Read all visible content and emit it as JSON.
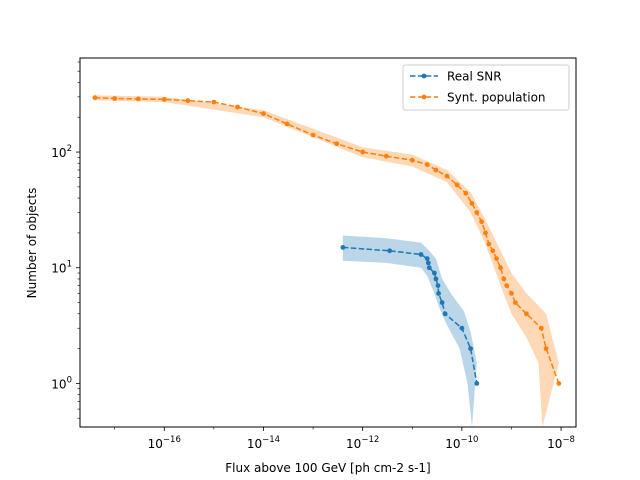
{
  "chart_data": {
    "type": "line",
    "title": "",
    "xlabel": "Flux above 100 GeV [ph cm-2 s-1]",
    "ylabel": "Number of objects",
    "xscale": "log",
    "yscale": "log",
    "xlim": [
      2e-18,
      2e-08
    ],
    "ylim": [
      0.42,
      650
    ],
    "x_ticks": [
      {
        "value": 1e-16,
        "base": "10",
        "exp": "−16"
      },
      {
        "value": 1e-14,
        "base": "10",
        "exp": "−14"
      },
      {
        "value": 1e-12,
        "base": "10",
        "exp": "−12"
      },
      {
        "value": 1e-10,
        "base": "10",
        "exp": "−10"
      },
      {
        "value": 1e-08,
        "base": "10",
        "exp": "−8"
      }
    ],
    "y_ticks": [
      {
        "value": 1,
        "base": "10",
        "exp": "0"
      },
      {
        "value": 10,
        "base": "10",
        "exp": "1"
      },
      {
        "value": 100,
        "base": "10",
        "exp": "2"
      }
    ],
    "grid": false,
    "legend_position": "top-right",
    "series": [
      {
        "name": "Real SNR",
        "color": "#1f77b4",
        "band_color": "#1f77b4",
        "linestyle": "dashed",
        "marker": "circle",
        "points": [
          [
            4e-13,
            15
          ],
          [
            3.5e-12,
            14
          ],
          [
            1.5e-11,
            13
          ],
          [
            2e-11,
            12
          ],
          [
            2.1e-11,
            11
          ],
          [
            2.2e-11,
            10
          ],
          [
            2.8e-11,
            9
          ],
          [
            3e-11,
            8
          ],
          [
            3.3e-11,
            7
          ],
          [
            3.4e-11,
            6
          ],
          [
            4e-11,
            5
          ],
          [
            4.6e-11,
            4
          ],
          [
            1e-10,
            3
          ],
          [
            1.5e-10,
            2
          ],
          [
            2e-10,
            1
          ]
        ],
        "band_upper": [
          [
            4e-13,
            19
          ],
          [
            3e-12,
            18
          ],
          [
            1.5e-11,
            16.5
          ],
          [
            2.2e-11,
            14
          ],
          [
            3e-11,
            12
          ],
          [
            4e-11,
            8
          ],
          [
            6e-11,
            6
          ],
          [
            1.1e-10,
            4.2
          ],
          [
            1.5e-10,
            2.8
          ],
          [
            2e-10,
            1.5
          ]
        ],
        "band_lower": [
          [
            4e-13,
            11.5
          ],
          [
            3e-12,
            11
          ],
          [
            1.5e-11,
            10
          ],
          [
            2e-11,
            8.5
          ],
          [
            2.8e-11,
            6
          ],
          [
            3.5e-11,
            4.5
          ],
          [
            5e-11,
            3.2
          ],
          [
            9e-11,
            2
          ],
          [
            1.3e-10,
            1
          ],
          [
            1.6e-10,
            0.42
          ]
        ]
      },
      {
        "name": "Synt. population",
        "color": "#ff7f0e",
        "band_color": "#ff7f0e",
        "linestyle": "dashed",
        "marker": "circle",
        "points": [
          [
            4e-18,
            295
          ],
          [
            1e-17,
            290
          ],
          [
            3e-17,
            288
          ],
          [
            1e-16,
            285
          ],
          [
            3e-16,
            278
          ],
          [
            1e-15,
            270
          ],
          [
            3e-15,
            245
          ],
          [
            1e-14,
            215
          ],
          [
            3e-14,
            175
          ],
          [
            1e-13,
            140
          ],
          [
            3e-13,
            118
          ],
          [
            1e-12,
            100
          ],
          [
            3e-12,
            92
          ],
          [
            1e-11,
            85
          ],
          [
            2e-11,
            78
          ],
          [
            3e-11,
            70
          ],
          [
            5e-11,
            62
          ],
          [
            8e-11,
            52
          ],
          [
            1.2e-10,
            44
          ],
          [
            1.6e-10,
            36
          ],
          [
            2e-10,
            30
          ],
          [
            2.5e-10,
            25
          ],
          [
            3e-10,
            20
          ],
          [
            3.5e-10,
            16
          ],
          [
            4.2e-10,
            14
          ],
          [
            5e-10,
            12
          ],
          [
            6e-10,
            10
          ],
          [
            7e-10,
            8
          ],
          [
            8e-10,
            7
          ],
          [
            1e-09,
            6
          ],
          [
            1.2e-09,
            5
          ],
          [
            2e-09,
            4
          ],
          [
            4e-09,
            3
          ],
          [
            5e-09,
            2
          ],
          [
            9e-09,
            1
          ]
        ],
        "band_upper": [
          [
            4e-18,
            310
          ],
          [
            1e-16,
            300
          ],
          [
            1e-14,
            230
          ],
          [
            1e-12,
            110
          ],
          [
            1e-11,
            95
          ],
          [
            5e-11,
            70
          ],
          [
            1.5e-10,
            45
          ],
          [
            3e-10,
            26
          ],
          [
            6e-10,
            14
          ],
          [
            1e-09,
            9
          ],
          [
            2e-09,
            6
          ],
          [
            5e-09,
            4
          ],
          [
            9e-09,
            1.5
          ]
        ],
        "band_lower": [
          [
            4e-18,
            280
          ],
          [
            1e-16,
            270
          ],
          [
            1e-14,
            200
          ],
          [
            1e-12,
            90
          ],
          [
            1e-11,
            75
          ],
          [
            5e-11,
            55
          ],
          [
            1.5e-10,
            30
          ],
          [
            3e-10,
            16
          ],
          [
            6e-10,
            7
          ],
          [
            1e-09,
            4
          ],
          [
            2e-09,
            2.5
          ],
          [
            3.5e-09,
            1.5
          ],
          [
            4.2e-09,
            0.42
          ]
        ]
      }
    ]
  }
}
